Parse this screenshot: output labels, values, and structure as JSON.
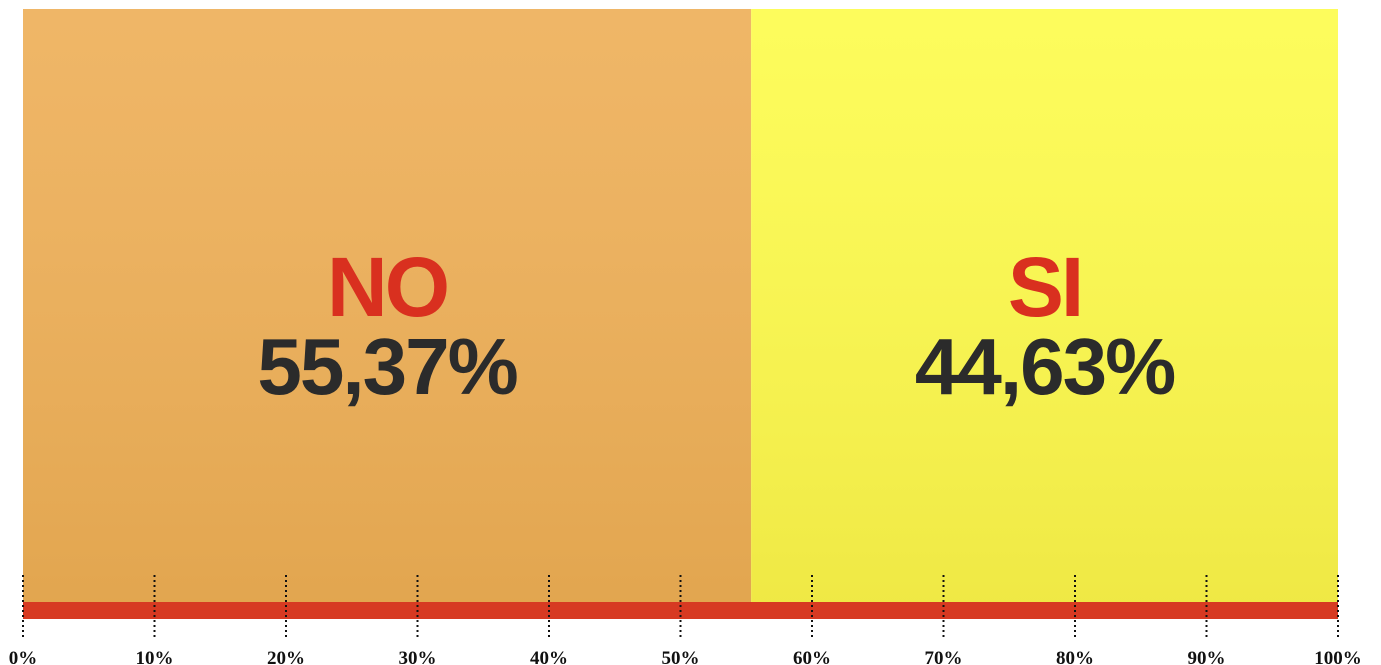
{
  "chart_data": {
    "type": "bar",
    "categories": [
      null
    ],
    "series": [
      {
        "name": "NO",
        "color": "#eeb05a",
        "values": [
          55.37
        ],
        "value_labels": [
          "55,37%"
        ]
      },
      {
        "name": "SI",
        "color": "#fdfc4e",
        "values": [
          44.63
        ],
        "value_labels": [
          "44,63%"
        ]
      }
    ],
    "stacked": true,
    "orientation": "horizontal",
    "axis_color": "#d73a22",
    "xlim": [
      0,
      100
    ],
    "xticks": [
      {
        "value": 0,
        "label": "0%"
      },
      {
        "value": 10,
        "label": "10%"
      },
      {
        "value": 20,
        "label": "20%"
      },
      {
        "value": 30,
        "label": "30%"
      },
      {
        "value": 40,
        "label": "40%"
      },
      {
        "value": 50,
        "label": "50%"
      },
      {
        "value": 60,
        "label": "60%"
      },
      {
        "value": 70,
        "label": "70%"
      },
      {
        "value": 80,
        "label": "80%"
      },
      {
        "value": 90,
        "label": "90%"
      },
      {
        "value": 100,
        "label": "100%"
      }
    ]
  }
}
